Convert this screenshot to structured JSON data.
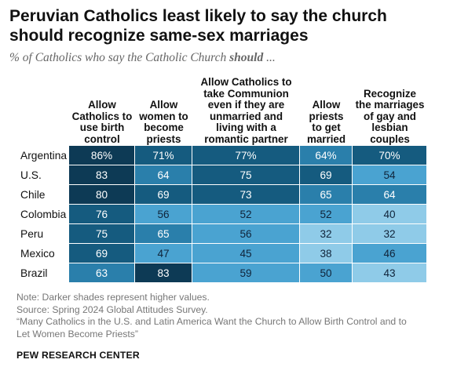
{
  "header": {
    "title_line1": "Peruvian Catholics least likely to say the church",
    "title_line2": "should recognize same-sex marriages",
    "subtitle_prefix": "% of Catholics who say the Catholic Church ",
    "subtitle_emphasis": "should",
    "subtitle_suffix": " ..."
  },
  "chart_data": {
    "type": "table",
    "columns": [
      [
        "Allow",
        "Catholics to",
        "use birth",
        "control"
      ],
      [
        "Allow",
        "women to",
        "become",
        "priests"
      ],
      [
        "Allow Catholics to",
        "take Communion",
        "even if they are",
        "unmarried and",
        "living with a",
        "romantic partner"
      ],
      [
        "Allow",
        "priests",
        "to get",
        "married"
      ],
      [
        "Recognize",
        "the marriages",
        "of gay and",
        "lesbian",
        "couples"
      ]
    ],
    "rows": [
      {
        "country": "Argentina",
        "values": [
          "86%",
          "71%",
          "77%",
          "64%",
          "70%"
        ]
      },
      {
        "country": "U.S.",
        "values": [
          "83",
          "64",
          "75",
          "69",
          "54"
        ]
      },
      {
        "country": "Chile",
        "values": [
          "80",
          "69",
          "73",
          "65",
          "64"
        ]
      },
      {
        "country": "Colombia",
        "values": [
          "76",
          "56",
          "52",
          "52",
          "40"
        ]
      },
      {
        "country": "Peru",
        "values": [
          "75",
          "65",
          "56",
          "32",
          "32"
        ]
      },
      {
        "country": "Mexico",
        "values": [
          "69",
          "47",
          "45",
          "38",
          "46"
        ]
      },
      {
        "country": "Brazil",
        "values": [
          "63",
          "83",
          "59",
          "50",
          "43"
        ]
      }
    ],
    "shading": "Darker shades represent higher values.",
    "colors": {
      "darkest": "#0d3a55",
      "dark": "#155b7f",
      "mid": "#2a7fab",
      "light": "#4aa3d1",
      "lightest": "#8fcbe8"
    }
  },
  "footer": {
    "note": "Note: Darker shades represent higher values.",
    "source": "Source: Spring 2024 Global Attitudes Survey.",
    "report_line1": "“Many Catholics in the U.S. and Latin America Want the Church to Allow Birth Control and to",
    "report_line2": "Let Women Become Priests”",
    "brand": "PEW RESEARCH CENTER"
  }
}
